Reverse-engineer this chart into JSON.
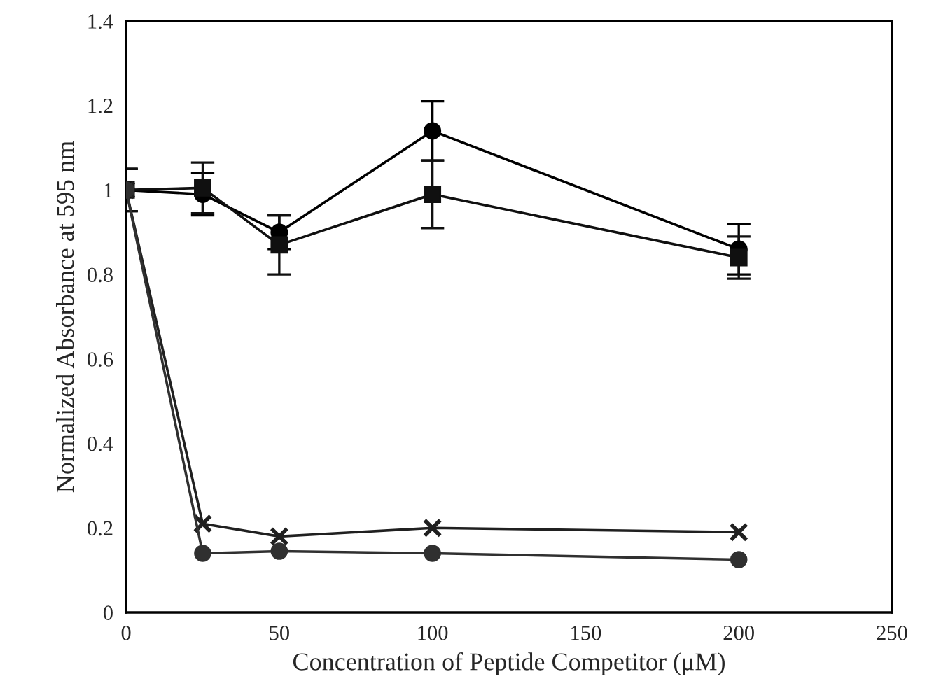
{
  "chart_data": {
    "type": "line",
    "xlabel": "Concentration of Peptide Competitor (μM)",
    "ylabel": "Normalized Absorbance at 595 nm",
    "x": [
      0,
      25,
      50,
      100,
      200
    ],
    "series": [
      {
        "color": "#000000",
        "marker": "circle",
        "values": [
          1.0,
          0.99,
          0.9,
          1.14,
          0.86
        ],
        "errors": [
          0.05,
          0.05,
          0.04,
          0.07,
          0.06
        ]
      },
      {
        "color": "#101010",
        "marker": "square",
        "values": [
          1.0,
          1.005,
          0.87,
          0.99,
          0.84
        ],
        "errors": [
          0.05,
          0.06,
          0.07,
          0.08,
          0.05
        ]
      },
      {
        "color": "#202020",
        "marker": "cross",
        "values": [
          1.0,
          0.21,
          0.18,
          0.2,
          0.19
        ]
      },
      {
        "color": "#303030",
        "marker": "circle",
        "values": [
          1.0,
          0.14,
          0.145,
          0.14,
          0.125
        ]
      }
    ],
    "xlim": [
      0,
      250
    ],
    "xticks": [
      0,
      50,
      100,
      150,
      200,
      250
    ],
    "ylim": [
      0,
      1.4
    ],
    "yticks": [
      0,
      0.2,
      0.4,
      0.6,
      0.8,
      1,
      1.2,
      1.4
    ],
    "grid": false,
    "legend": false,
    "line_style": "solid"
  }
}
